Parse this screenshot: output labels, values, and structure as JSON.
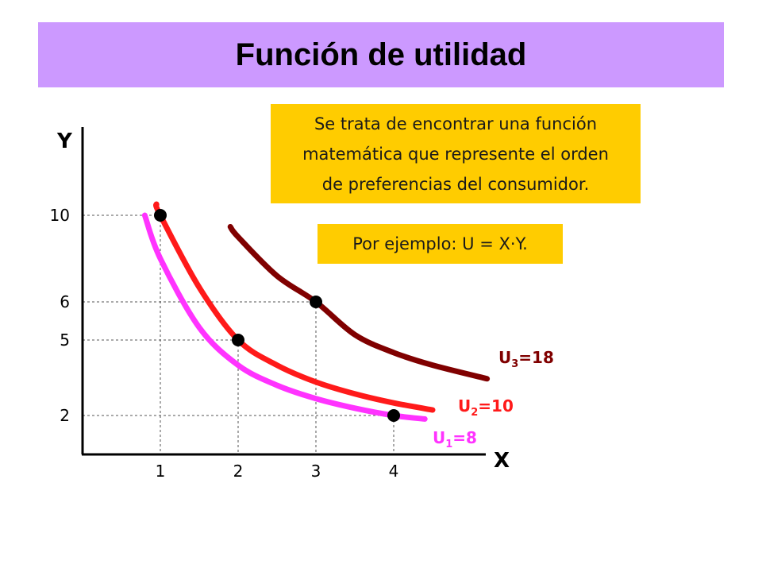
{
  "title": "Función de utilidad",
  "notes": {
    "main_lines": [
      "Se trata de encontrar una función",
      "matemática que represente el orden",
      "de preferencias del consumidor."
    ],
    "example": "Por ejemplo: U = X·Y."
  },
  "colors": {
    "banner": "#cc99ff",
    "note_background": "#ffcc00",
    "u1": "#ff33ff",
    "u2": "#ff1a1a",
    "u3": "#800000"
  },
  "chart_data": {
    "type": "line",
    "xlabel": "X",
    "ylabel": "Y",
    "x_ticks": [
      "1",
      "2",
      "3",
      "4"
    ],
    "y_ticks": [
      "2",
      "5",
      "6",
      "10"
    ],
    "xlim": [
      0,
      5
    ],
    "ylim": [
      0,
      12
    ],
    "guide_lines": true,
    "series": [
      {
        "name": "U1=8",
        "label_main": "U",
        "label_sub": "1",
        "label_rest": "=8",
        "utility": 8,
        "color": "#ff33ff",
        "x": [
          0.8,
          1,
          1.5,
          2,
          2.5,
          3,
          3.5,
          4,
          4.4
        ],
        "y": [
          10.0,
          8.0,
          5.33,
          4.0,
          3.2,
          2.67,
          2.29,
          2.0,
          1.82
        ]
      },
      {
        "name": "U2=10",
        "label_main": "U",
        "label_sub": "2",
        "label_rest": "=10",
        "utility": 10,
        "color": "#ff1a1a",
        "x": [
          0.95,
          1,
          1.5,
          2,
          2.5,
          3,
          3.5,
          4,
          4.5
        ],
        "y": [
          10.5,
          10.0,
          6.67,
          5.0,
          4.0,
          3.33,
          2.86,
          2.5,
          2.22
        ]
      },
      {
        "name": "U3=18",
        "label_main": "U",
        "label_sub": "3",
        "label_rest": "=18",
        "utility": 18,
        "color": "#800000",
        "x": [
          1.9,
          2,
          2.5,
          3,
          3.5,
          4,
          4.5,
          5.2
        ],
        "y": [
          9.47,
          9.0,
          7.2,
          6.0,
          5.14,
          4.5,
          4.0,
          3.46
        ]
      }
    ],
    "points": [
      {
        "x": 1,
        "y": 10
      },
      {
        "x": 2,
        "y": 5
      },
      {
        "x": 3,
        "y": 6
      },
      {
        "x": 4,
        "y": 2
      }
    ]
  }
}
